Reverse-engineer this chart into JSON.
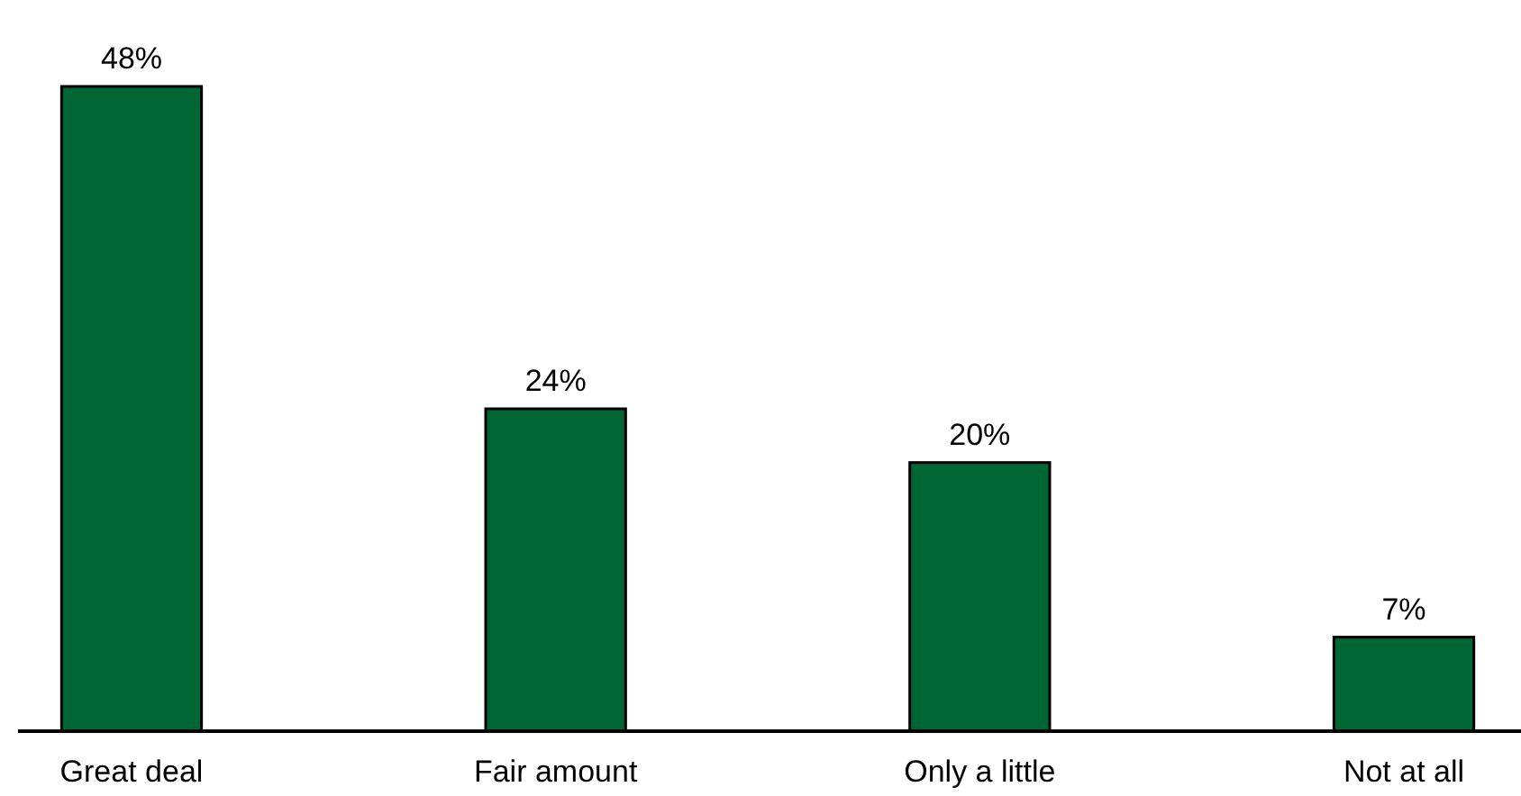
{
  "chart_data": {
    "type": "bar",
    "categories": [
      "Great deal",
      "Fair amount",
      "Only a little",
      "Not at all"
    ],
    "values": [
      48,
      24,
      20,
      7
    ],
    "value_labels": [
      "48%",
      "24%",
      "20%",
      "7%"
    ],
    "color": "#006633"
  }
}
